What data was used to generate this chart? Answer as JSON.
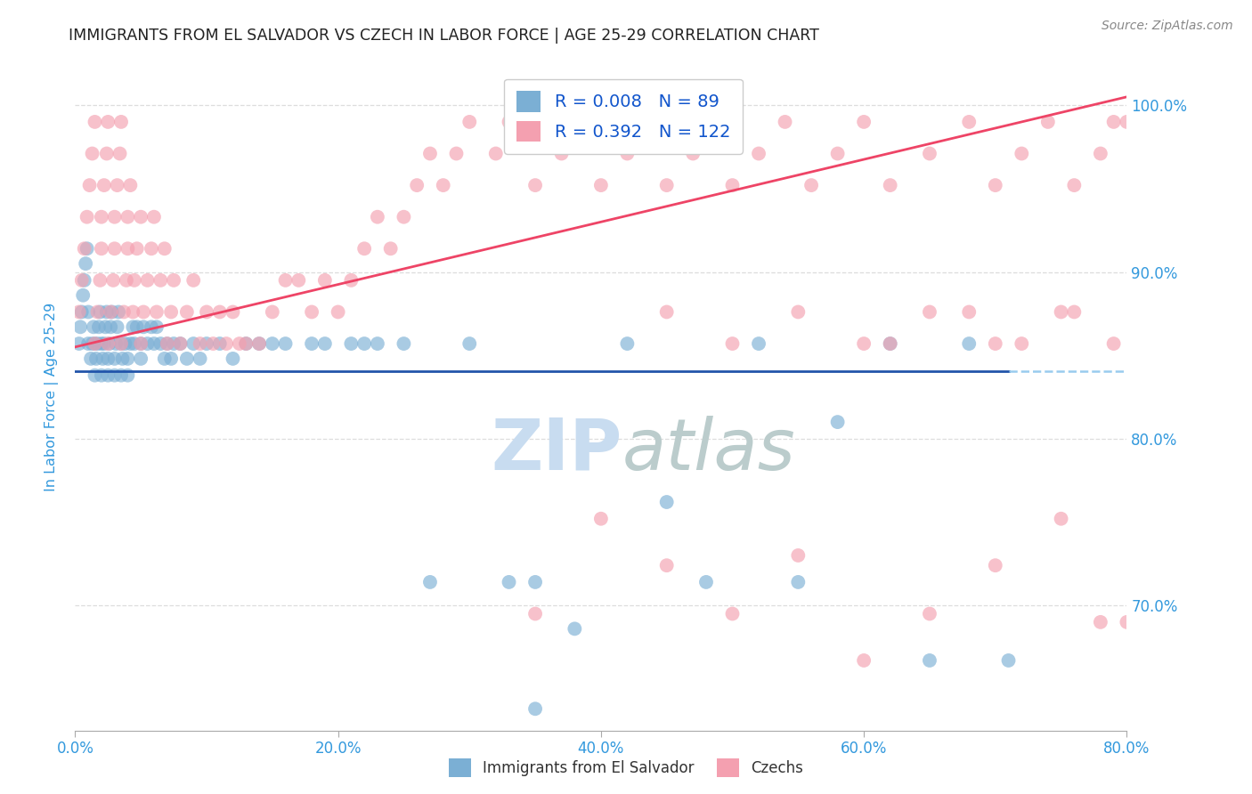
{
  "title": "IMMIGRANTS FROM EL SALVADOR VS CZECH IN LABOR FORCE | AGE 25-29 CORRELATION CHART",
  "source": "Source: ZipAtlas.com",
  "ylabel": "In Labor Force | Age 25-29",
  "xlim": [
    0.0,
    0.8
  ],
  "ylim": [
    0.625,
    1.025
  ],
  "x_ticks": [
    0.0,
    0.2,
    0.4,
    0.6,
    0.8
  ],
  "y_ticks": [
    0.7,
    0.8,
    0.9,
    1.0
  ],
  "R_salvador": 0.008,
  "N_salvador": 89,
  "R_czech": 0.392,
  "N_czech": 122,
  "color_salvador": "#7BAFD4",
  "color_czech": "#F4A0B0",
  "trendline_salvador": "#2255AA",
  "trendline_czech": "#EE4466",
  "dashed_line_color": "#99CCEE",
  "watermark_color": "#C8DCF0",
  "background_color": "#ffffff",
  "grid_color": "#DDDDDD",
  "title_color": "#222222",
  "axis_label_color": "#3399DD",
  "tick_color": "#3399DD",
  "legend_label_salvador": "Immigrants from El Salvador",
  "legend_label_czech": "Czechs",
  "sal_x": [
    0.003,
    0.004,
    0.005,
    0.006,
    0.007,
    0.008,
    0.009,
    0.01,
    0.01,
    0.012,
    0.013,
    0.014,
    0.015,
    0.015,
    0.016,
    0.017,
    0.018,
    0.019,
    0.02,
    0.02,
    0.021,
    0.022,
    0.023,
    0.024,
    0.025,
    0.025,
    0.026,
    0.027,
    0.028,
    0.03,
    0.03,
    0.031,
    0.032,
    0.033,
    0.035,
    0.035,
    0.036,
    0.038,
    0.04,
    0.04,
    0.042,
    0.044,
    0.045,
    0.047,
    0.05,
    0.05,
    0.052,
    0.055,
    0.058,
    0.06,
    0.062,
    0.065,
    0.068,
    0.07,
    0.073,
    0.075,
    0.08,
    0.085,
    0.09,
    0.095,
    0.1,
    0.11,
    0.12,
    0.13,
    0.14,
    0.15,
    0.16,
    0.18,
    0.19,
    0.21,
    0.22,
    0.23,
    0.25,
    0.27,
    0.3,
    0.33,
    0.35,
    0.38,
    0.42,
    0.45,
    0.48,
    0.52,
    0.55,
    0.58,
    0.62,
    0.65,
    0.68,
    0.71,
    0.35
  ],
  "sal_y": [
    0.857,
    0.867,
    0.876,
    0.886,
    0.895,
    0.905,
    0.914,
    0.857,
    0.876,
    0.848,
    0.857,
    0.867,
    0.838,
    0.857,
    0.848,
    0.857,
    0.867,
    0.876,
    0.838,
    0.857,
    0.848,
    0.857,
    0.867,
    0.876,
    0.838,
    0.848,
    0.857,
    0.867,
    0.876,
    0.838,
    0.848,
    0.857,
    0.867,
    0.876,
    0.838,
    0.857,
    0.848,
    0.857,
    0.838,
    0.848,
    0.857,
    0.867,
    0.857,
    0.867,
    0.848,
    0.857,
    0.867,
    0.857,
    0.867,
    0.857,
    0.867,
    0.857,
    0.848,
    0.857,
    0.848,
    0.857,
    0.857,
    0.848,
    0.857,
    0.848,
    0.857,
    0.857,
    0.848,
    0.857,
    0.857,
    0.857,
    0.857,
    0.857,
    0.857,
    0.857,
    0.857,
    0.857,
    0.857,
    0.714,
    0.857,
    0.714,
    0.714,
    0.686,
    0.857,
    0.762,
    0.714,
    0.857,
    0.714,
    0.81,
    0.857,
    0.667,
    0.857,
    0.667,
    0.638
  ],
  "cz_x": [
    0.003,
    0.005,
    0.007,
    0.009,
    0.011,
    0.013,
    0.015,
    0.015,
    0.017,
    0.019,
    0.02,
    0.02,
    0.022,
    0.024,
    0.025,
    0.025,
    0.027,
    0.029,
    0.03,
    0.03,
    0.032,
    0.034,
    0.035,
    0.035,
    0.037,
    0.039,
    0.04,
    0.04,
    0.042,
    0.044,
    0.045,
    0.047,
    0.05,
    0.05,
    0.052,
    0.055,
    0.058,
    0.06,
    0.062,
    0.065,
    0.068,
    0.07,
    0.073,
    0.075,
    0.08,
    0.085,
    0.09,
    0.095,
    0.1,
    0.105,
    0.11,
    0.115,
    0.12,
    0.125,
    0.13,
    0.14,
    0.15,
    0.16,
    0.17,
    0.18,
    0.19,
    0.2,
    0.21,
    0.22,
    0.23,
    0.24,
    0.25,
    0.26,
    0.27,
    0.28,
    0.29,
    0.3,
    0.32,
    0.33,
    0.35,
    0.37,
    0.39,
    0.4,
    0.42,
    0.43,
    0.45,
    0.47,
    0.48,
    0.5,
    0.52,
    0.54,
    0.56,
    0.58,
    0.6,
    0.62,
    0.65,
    0.68,
    0.7,
    0.72,
    0.74,
    0.76,
    0.78,
    0.79,
    0.8,
    0.45,
    0.5,
    0.55,
    0.6,
    0.65,
    0.7,
    0.75,
    0.78,
    0.62,
    0.68,
    0.72,
    0.76,
    0.79,
    0.8,
    0.75,
    0.7,
    0.65,
    0.6,
    0.55,
    0.5,
    0.45,
    0.4,
    0.35
  ],
  "cz_y": [
    0.876,
    0.895,
    0.914,
    0.933,
    0.952,
    0.971,
    0.99,
    0.857,
    0.876,
    0.895,
    0.914,
    0.933,
    0.952,
    0.971,
    0.99,
    0.857,
    0.876,
    0.895,
    0.914,
    0.933,
    0.952,
    0.971,
    0.99,
    0.857,
    0.876,
    0.895,
    0.914,
    0.933,
    0.952,
    0.876,
    0.895,
    0.914,
    0.933,
    0.857,
    0.876,
    0.895,
    0.914,
    0.933,
    0.876,
    0.895,
    0.914,
    0.857,
    0.876,
    0.895,
    0.857,
    0.876,
    0.895,
    0.857,
    0.876,
    0.857,
    0.876,
    0.857,
    0.876,
    0.857,
    0.857,
    0.857,
    0.876,
    0.895,
    0.895,
    0.876,
    0.895,
    0.876,
    0.895,
    0.914,
    0.933,
    0.914,
    0.933,
    0.952,
    0.971,
    0.952,
    0.971,
    0.99,
    0.971,
    0.99,
    0.952,
    0.971,
    0.99,
    0.952,
    0.971,
    0.99,
    0.952,
    0.971,
    0.99,
    0.952,
    0.971,
    0.99,
    0.952,
    0.971,
    0.99,
    0.952,
    0.971,
    0.99,
    0.952,
    0.971,
    0.99,
    0.952,
    0.971,
    0.99,
    0.99,
    0.876,
    0.857,
    0.876,
    0.857,
    0.876,
    0.857,
    0.876,
    0.69,
    0.857,
    0.876,
    0.857,
    0.876,
    0.857,
    0.69,
    0.752,
    0.724,
    0.695,
    0.667,
    0.73,
    0.695,
    0.724,
    0.752,
    0.695
  ]
}
